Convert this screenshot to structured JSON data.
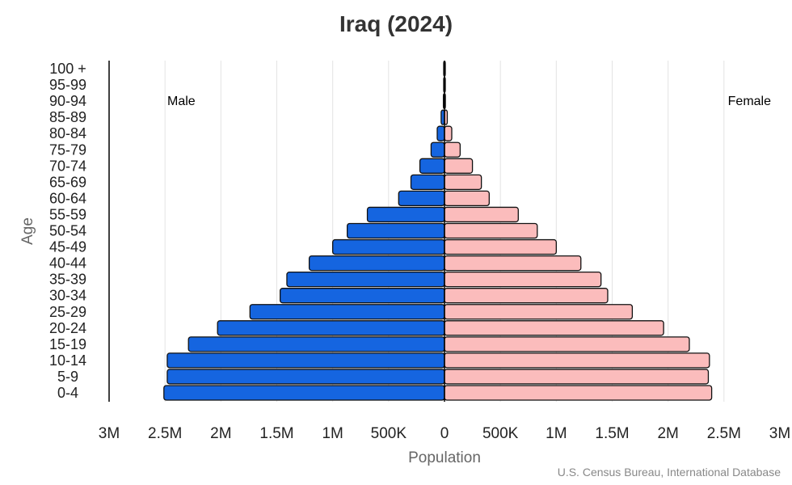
{
  "chart_data": {
    "type": "bar",
    "orientation": "horizontal-pyramid",
    "title": "Iraq (2024)",
    "xlabel": "Population",
    "ylabel": "Age",
    "source": "U.S. Census Bureau, International Database",
    "categories": [
      "0-4",
      "5-9",
      "10-14",
      "15-19",
      "20-24",
      "25-29",
      "30-34",
      "35-39",
      "40-44",
      "45-49",
      "50-54",
      "55-59",
      "60-64",
      "65-69",
      "70-74",
      "75-79",
      "80-84",
      "85-89",
      "90-94",
      "95-99",
      "100 +"
    ],
    "series": [
      {
        "name": "Male",
        "color": "#1565e0",
        "values": [
          2510000,
          2480000,
          2480000,
          2290000,
          2030000,
          1740000,
          1470000,
          1410000,
          1210000,
          1000000,
          870000,
          690000,
          410000,
          300000,
          220000,
          120000,
          65000,
          30000,
          10000,
          4000,
          1000
        ]
      },
      {
        "name": "Female",
        "color": "#fbbcbc",
        "values": [
          2390000,
          2360000,
          2370000,
          2190000,
          1960000,
          1680000,
          1460000,
          1400000,
          1220000,
          1000000,
          830000,
          660000,
          400000,
          330000,
          250000,
          140000,
          65000,
          25000,
          8000,
          3000,
          1000
        ]
      }
    ],
    "xlim": [
      -3000000,
      3000000
    ],
    "xticks": [
      -3000000,
      -2500000,
      -2000000,
      -1500000,
      -1000000,
      -500000,
      0,
      500000,
      1000000,
      1500000,
      2000000,
      2500000,
      3000000
    ],
    "xtick_labels": [
      "3M",
      "2.5M",
      "2M",
      "1.5M",
      "1M",
      "500K",
      "0",
      "500K",
      "1M",
      "1.5M",
      "2M",
      "2.5M",
      "3M"
    ],
    "grid": true
  }
}
